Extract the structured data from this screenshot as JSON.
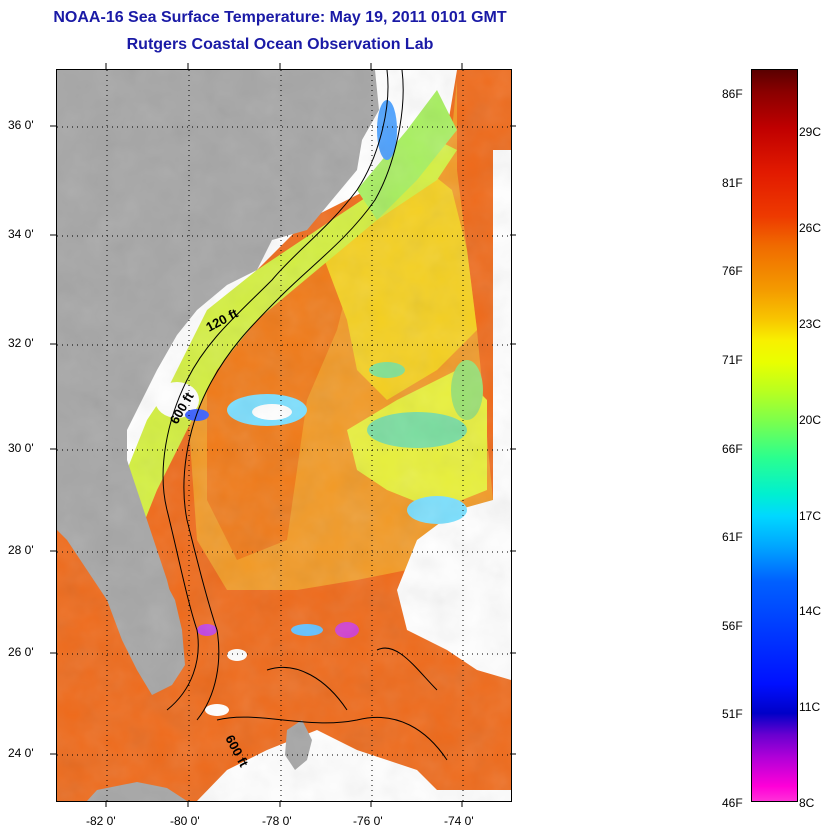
{
  "title_line1": "NOAA-16 Sea Surface Temperature:  May 19, 2011 0101 GMT",
  "title_line2": "Rutgers Coastal Ocean Observation Lab",
  "lat_labels": [
    "36 0'",
    "34 0'",
    "32 0'",
    "30 0'",
    "28 0'",
    "26 0'",
    "24 0'"
  ],
  "lon_labels": [
    "-82 0'",
    "-80 0'",
    "-78 0'",
    "-76 0'",
    "-74 0'"
  ],
  "contour_labels": [
    "120 ft",
    "600 ft",
    "600 ft"
  ],
  "colorbar_f_labels": [
    "86F",
    "81F",
    "76F",
    "71F",
    "66F",
    "61F",
    "56F",
    "51F",
    "46F"
  ],
  "colorbar_c_labels": [
    "29C",
    "26C",
    "23C",
    "20C",
    "17C",
    "14C",
    "11C",
    "8C"
  ],
  "colors": {
    "land": "#a6a6a6",
    "title": "#1a1aa6",
    "warm_water": "#f06a10",
    "mid_water": "#f4b020",
    "cool_water": "#d8f03a"
  }
}
